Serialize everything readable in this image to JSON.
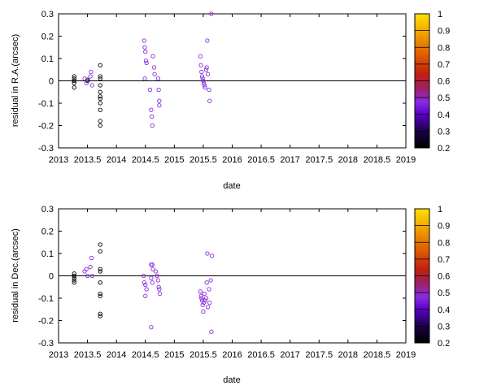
{
  "chart_data": [
    {
      "type": "scatter",
      "title": "",
      "xlabel": "date",
      "ylabel": "residual in R.A.(arcsec)",
      "xlim": [
        2013,
        2019
      ],
      "ylim": [
        -0.3,
        0.3
      ],
      "x_ticks": [
        "2013",
        "2013.5",
        "2014",
        "2014.5",
        "2015",
        "2015.5",
        "2016",
        "2016.5",
        "2017",
        "2017.5",
        "2018",
        "2018.5",
        "2019"
      ],
      "y_ticks": [
        "-0.3",
        "-0.2",
        "-0.1",
        "0",
        "0.1",
        "0.2",
        "0.3"
      ],
      "colorbar": {
        "min": 0.2,
        "max": 1.0,
        "ticks": [
          "0.2",
          "0.3",
          "0.4",
          "0.5",
          "0.6",
          "0.7",
          "0.8",
          "0.9",
          "1"
        ]
      },
      "grid": false,
      "marker": "open-circle",
      "series": [
        {
          "color_value": 0.2,
          "points": [
            [
              2013.27,
              0.02
            ],
            [
              2013.27,
              0.01
            ],
            [
              2013.27,
              0.0
            ],
            [
              2013.27,
              -0.01
            ],
            [
              2013.27,
              -0.03
            ],
            [
              2013.5,
              0.0
            ],
            [
              2013.5,
              0.005
            ],
            [
              2013.72,
              0.07
            ],
            [
              2013.72,
              0.02
            ],
            [
              2013.72,
              0.01
            ],
            [
              2013.72,
              -0.02
            ],
            [
              2013.72,
              -0.05
            ],
            [
              2013.72,
              -0.07
            ],
            [
              2013.72,
              -0.08
            ],
            [
              2013.72,
              -0.1
            ],
            [
              2013.72,
              -0.13
            ],
            [
              2013.72,
              -0.18
            ],
            [
              2013.72,
              -0.2
            ]
          ]
        },
        {
          "color_value": 0.45,
          "points": [
            [
              2013.45,
              0.01
            ],
            [
              2013.48,
              -0.01
            ],
            [
              2013.55,
              0.02
            ],
            [
              2013.56,
              0.04
            ],
            [
              2013.58,
              -0.02
            ],
            [
              2014.48,
              0.18
            ],
            [
              2014.49,
              0.15
            ],
            [
              2014.5,
              0.13
            ],
            [
              2014.51,
              0.09
            ],
            [
              2014.52,
              0.08
            ],
            [
              2014.49,
              0.01
            ],
            [
              2014.58,
              -0.04
            ],
            [
              2014.6,
              -0.13
            ],
            [
              2014.61,
              -0.16
            ],
            [
              2014.62,
              -0.2
            ],
            [
              2014.63,
              0.11
            ],
            [
              2014.65,
              0.06
            ],
            [
              2014.66,
              0.03
            ],
            [
              2014.72,
              0.01
            ],
            [
              2014.73,
              -0.04
            ],
            [
              2014.74,
              -0.09
            ],
            [
              2014.74,
              -0.11
            ],
            [
              2015.45,
              0.11
            ],
            [
              2015.46,
              0.07
            ],
            [
              2015.47,
              0.04
            ],
            [
              2015.48,
              0.02
            ],
            [
              2015.49,
              0.01
            ],
            [
              2015.5,
              0.0
            ],
            [
              2015.51,
              -0.01
            ],
            [
              2015.52,
              -0.02
            ],
            [
              2015.53,
              -0.03
            ],
            [
              2015.55,
              0.05
            ],
            [
              2015.56,
              0.06
            ],
            [
              2015.57,
              0.18
            ],
            [
              2015.58,
              0.03
            ],
            [
              2015.6,
              -0.04
            ],
            [
              2015.61,
              -0.09
            ],
            [
              2015.64,
              0.3
            ]
          ]
        }
      ]
    },
    {
      "type": "scatter",
      "title": "",
      "xlabel": "date",
      "ylabel": "residual in Dec.(arcsec)",
      "xlim": [
        2013,
        2019
      ],
      "ylim": [
        -0.3,
        0.3
      ],
      "x_ticks": [
        "2013",
        "2013.5",
        "2014",
        "2014.5",
        "2015",
        "2015.5",
        "2016",
        "2016.5",
        "2017",
        "2017.5",
        "2018",
        "2018.5",
        "2019"
      ],
      "y_ticks": [
        "-0.3",
        "-0.2",
        "-0.1",
        "0",
        "0.1",
        "0.2",
        "0.3"
      ],
      "colorbar": {
        "min": 0.2,
        "max": 1.0,
        "ticks": [
          "0.2",
          "0.3",
          "0.4",
          "0.5",
          "0.6",
          "0.7",
          "0.8",
          "0.9",
          "1"
        ]
      },
      "grid": false,
      "marker": "open-circle",
      "series": [
        {
          "color_value": 0.2,
          "points": [
            [
              2013.27,
              0.01
            ],
            [
              2013.27,
              0.0
            ],
            [
              2013.27,
              -0.01
            ],
            [
              2013.27,
              -0.02
            ],
            [
              2013.27,
              -0.03
            ],
            [
              2013.72,
              0.14
            ],
            [
              2013.72,
              0.11
            ],
            [
              2013.72,
              0.03
            ],
            [
              2013.72,
              0.02
            ],
            [
              2013.72,
              -0.03
            ],
            [
              2013.72,
              -0.08
            ],
            [
              2013.72,
              -0.09
            ],
            [
              2013.72,
              -0.17
            ],
            [
              2013.72,
              -0.18
            ]
          ]
        },
        {
          "color_value": 0.45,
          "points": [
            [
              2013.45,
              0.02
            ],
            [
              2013.48,
              0.03
            ],
            [
              2013.5,
              0.0
            ],
            [
              2013.55,
              0.04
            ],
            [
              2013.57,
              0.08
            ],
            [
              2013.58,
              0.0
            ],
            [
              2014.47,
              0.0
            ],
            [
              2014.48,
              -0.03
            ],
            [
              2014.5,
              -0.04
            ],
            [
              2014.52,
              -0.06
            ],
            [
              2014.5,
              -0.09
            ],
            [
              2014.6,
              0.05
            ],
            [
              2014.62,
              0.05
            ],
            [
              2014.63,
              0.03
            ],
            [
              2014.6,
              -0.01
            ],
            [
              2014.62,
              -0.03
            ],
            [
              2014.68,
              0.02
            ],
            [
              2014.7,
              0.0
            ],
            [
              2014.72,
              -0.02
            ],
            [
              2014.73,
              -0.05
            ],
            [
              2014.74,
              -0.06
            ],
            [
              2014.75,
              -0.08
            ],
            [
              2014.6,
              -0.23
            ],
            [
              2015.45,
              -0.07
            ],
            [
              2015.46,
              -0.09
            ],
            [
              2015.47,
              -0.1
            ],
            [
              2015.48,
              -0.11
            ],
            [
              2015.49,
              -0.13
            ],
            [
              2015.5,
              -0.16
            ],
            [
              2015.51,
              -0.12
            ],
            [
              2015.52,
              -0.08
            ],
            [
              2015.53,
              -0.11
            ],
            [
              2015.55,
              -0.1
            ],
            [
              2015.56,
              -0.03
            ],
            [
              2015.57,
              0.1
            ],
            [
              2015.58,
              -0.14
            ],
            [
              2015.6,
              -0.06
            ],
            [
              2015.61,
              -0.12
            ],
            [
              2015.63,
              -0.02
            ],
            [
              2015.64,
              -0.25
            ],
            [
              2015.65,
              0.09
            ]
          ]
        }
      ]
    }
  ]
}
